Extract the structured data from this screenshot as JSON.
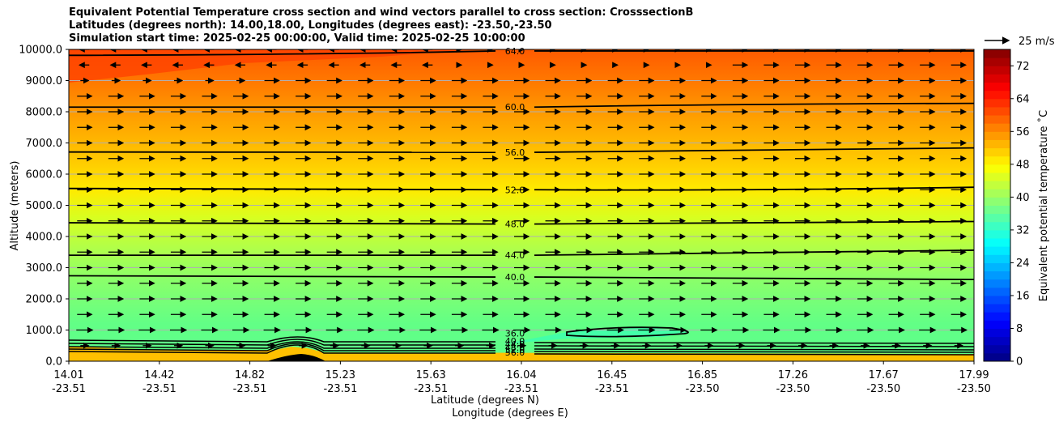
{
  "chart_data": {
    "type": "heatmap",
    "title_lines": [
      "Equivalent Potential Temperature cross section and wind vectors parallel to cross section: CrosssectionB",
      "Latitudes (degrees north): 14.00,18.00, Longitudes (degrees east): -23.50,-23.50",
      "Simulation start time: 2025-02-25 00:00:00, Valid time: 2025-02-25 10:00:00"
    ],
    "ylabel": "Altitude (meters)",
    "xlabel_lines": [
      "Latitude (degrees N)",
      "Longitude (degrees E)"
    ],
    "ylim": [
      0,
      10000
    ],
    "y_ticks": [
      "0.0",
      "1000.0",
      "2000.0",
      "3000.0",
      "4000.0",
      "5000.0",
      "6000.0",
      "7000.0",
      "8000.0",
      "9000.0",
      "10000.0"
    ],
    "x_ticks": [
      {
        "lat": "14.01",
        "lon": "-23.51"
      },
      {
        "lat": "14.42",
        "lon": "-23.51"
      },
      {
        "lat": "14.82",
        "lon": "-23.51"
      },
      {
        "lat": "15.23",
        "lon": "-23.51"
      },
      {
        "lat": "15.63",
        "lon": "-23.51"
      },
      {
        "lat": "16.04",
        "lon": "-23.51"
      },
      {
        "lat": "16.45",
        "lon": "-23.51"
      },
      {
        "lat": "16.85",
        "lon": "-23.50"
      },
      {
        "lat": "17.26",
        "lon": "-23.50"
      },
      {
        "lat": "17.67",
        "lon": "-23.50"
      },
      {
        "lat": "17.99",
        "lon": "-23.50"
      }
    ],
    "colorbar": {
      "label": "Equivalent potential temperature ˚C",
      "range": [
        0,
        76
      ],
      "ticks": [
        "0",
        "8",
        "16",
        "24",
        "32",
        "40",
        "48",
        "56",
        "64",
        "72"
      ],
      "colormap": "jet"
    },
    "contours": [
      {
        "level": 36,
        "label": "36.0",
        "alt_at_label": 900
      },
      {
        "level": 40,
        "label": "40.0",
        "alt_at_label": 2700
      },
      {
        "level": 44,
        "label": "44.0",
        "alt_at_label": 3400
      },
      {
        "level": 48,
        "label": "48.0",
        "alt_at_label": 4400
      },
      {
        "level": 52,
        "label": "52.0",
        "alt_at_label": 5500
      },
      {
        "level": 56,
        "label": "56.0",
        "alt_at_label": 6700
      },
      {
        "level": 60,
        "label": "60.0",
        "alt_at_label": 8150
      },
      {
        "level": 64,
        "label": "64.0",
        "alt_at_label": 9950
      }
    ],
    "surface_contour_labels": [
      "40.0",
      "44.0",
      "48.0",
      "52.0",
      "56.0"
    ],
    "wind_key": {
      "label": "25 m/s",
      "speed": 25
    },
    "grid": true
  },
  "colors": {
    "contour": "#000000",
    "grid": "#b0b0b0",
    "terrain": "#000000"
  }
}
